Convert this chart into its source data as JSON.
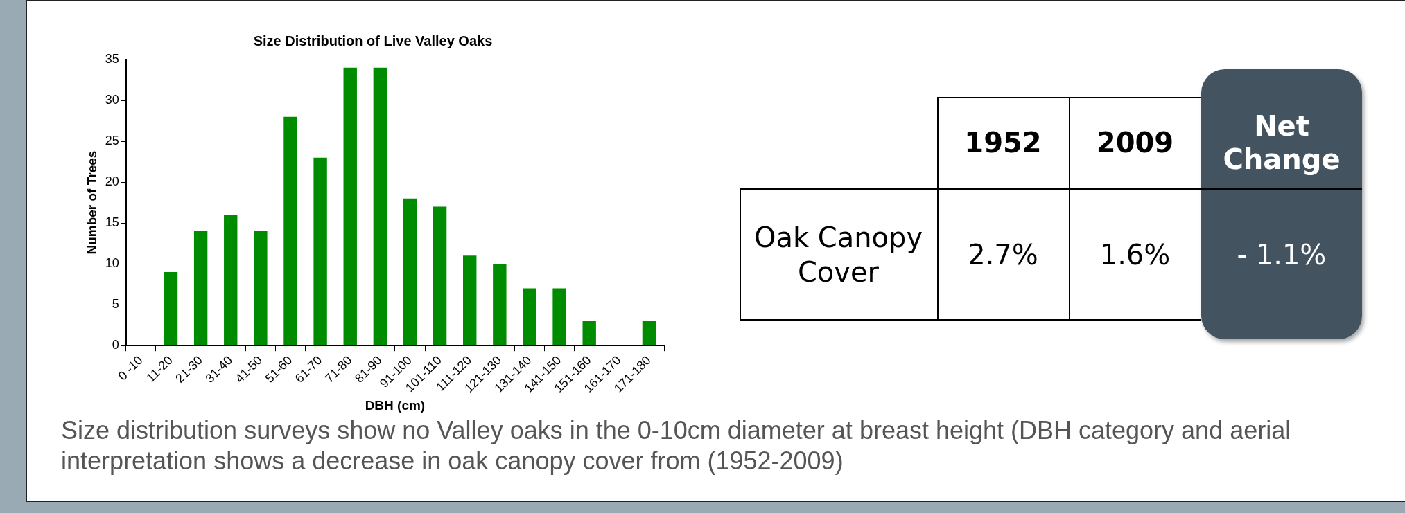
{
  "chart_data": [
    {
      "type": "bar",
      "title": "Size Distribution of Live Valley Oaks",
      "xlabel": "DBH (cm)",
      "ylabel": "Number of Trees",
      "categories": [
        "0 -10",
        "11-20",
        "21-30",
        "31-40",
        "41-50",
        "51-60",
        "61-70",
        "71-80",
        "81-90",
        "91-100",
        "101-110",
        "111-120",
        "121-130",
        "131-140",
        "141-150",
        "151-160",
        "161-170",
        "171-180"
      ],
      "values": [
        0,
        9,
        14,
        16,
        14,
        28,
        23,
        34,
        34,
        18,
        17,
        11,
        10,
        7,
        7,
        3,
        0,
        3
      ],
      "color": "#008c00",
      "ylim": [
        0,
        35
      ],
      "yticks": [
        0,
        5,
        10,
        15,
        20,
        25,
        30,
        35
      ],
      "grid": false,
      "legend": false,
      "annotations": [
        "Size distribution surveys show no Valley oaks in the 0-10cm diameter at breast height (DBH category and aerial interpretation shows a decrease in oak canopy cover from (1952-2009)"
      ]
    },
    {
      "type": "other",
      "annotations": [
        "1952",
        "2009",
        "Net Change",
        "Oak Canopy Cover",
        "2.7%",
        "1.6%",
        "- 1.1%"
      ]
    }
  ]
}
